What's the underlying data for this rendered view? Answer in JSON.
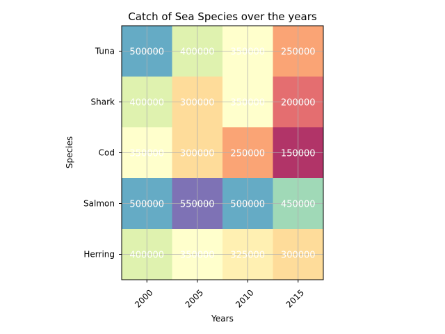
{
  "chart_data": {
    "type": "heatmap",
    "title": "Catch of Sea Species over the years",
    "xlabel": "Years",
    "ylabel": "Species",
    "x_categories": [
      "2000",
      "2005",
      "2010",
      "2015"
    ],
    "y_categories": [
      "Tuna",
      "Shark",
      "Cod",
      "Salmon",
      "Herring"
    ],
    "values": [
      [
        500000,
        400000,
        350000,
        250000
      ],
      [
        400000,
        300000,
        350000,
        200000
      ],
      [
        350000,
        300000,
        250000,
        150000
      ],
      [
        500000,
        550000,
        500000,
        450000
      ],
      [
        400000,
        350000,
        325000,
        300000
      ]
    ],
    "colormap": "Spectral",
    "color_alpha": 0.8,
    "grid": true,
    "legend": "none"
  }
}
